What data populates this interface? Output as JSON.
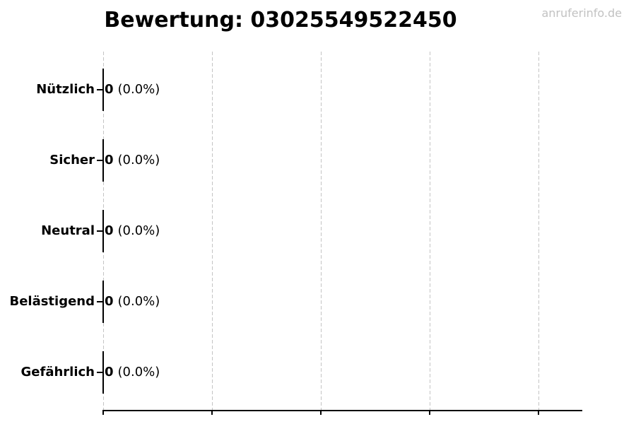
{
  "chart_data": {
    "type": "bar",
    "orientation": "horizontal",
    "title": "Bewertung: 03025549522450",
    "categories": [
      "Nützlich",
      "Sicher",
      "Neutral",
      "Belästigend",
      "Gefährlich"
    ],
    "values": [
      0,
      0,
      0,
      0,
      0
    ],
    "percent_labels": [
      "(0.0%)",
      "(0.0%)",
      "(0.0%)",
      "(0.0%)",
      "(0.0%)"
    ],
    "xlabel": "",
    "ylabel": "",
    "x_tick_labels": [],
    "x_tick_count": 5,
    "grid": {
      "vertical": true,
      "horizontal": false,
      "style": "dashed"
    },
    "legend": "none",
    "bar_edge_color": "#000000"
  },
  "watermark": {
    "text": "anruferinfo.de"
  },
  "colors": {
    "background": "#ffffff",
    "text": "#000000",
    "axis": "#000000",
    "gridline": "#c4c4c4",
    "watermark": "#c2c2c2"
  }
}
